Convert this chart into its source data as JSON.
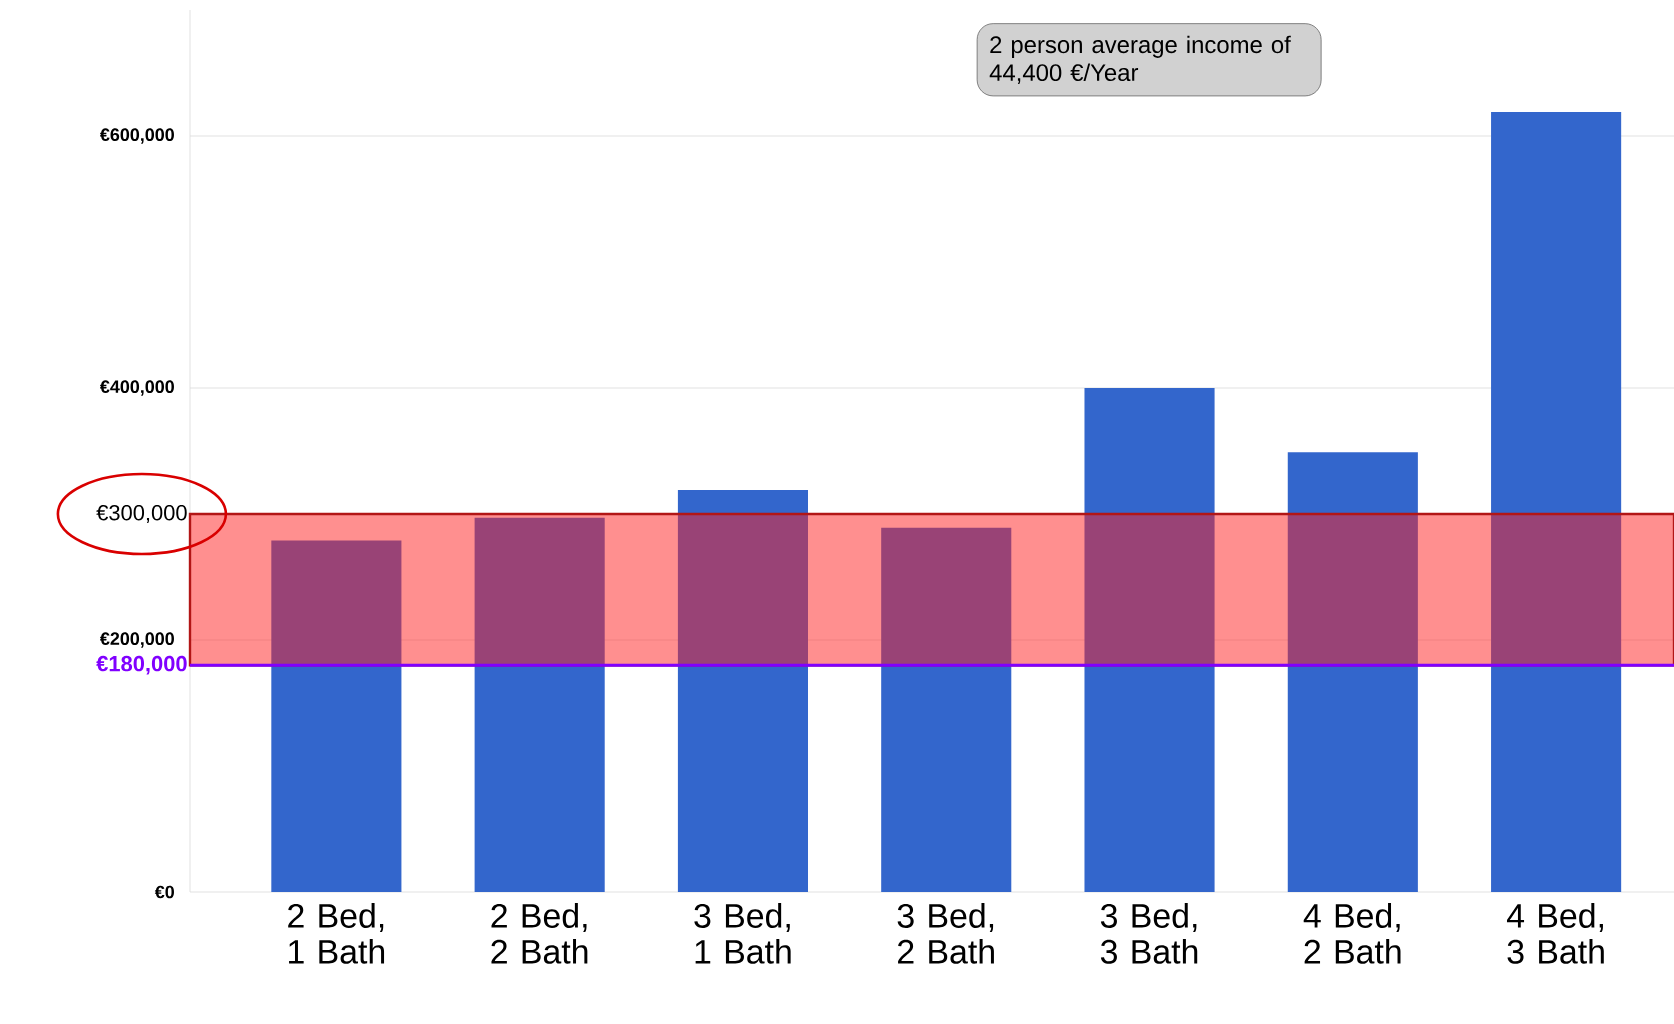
{
  "chart_data": {
    "type": "bar",
    "categories": [
      "2 Bed, 1 Bath",
      "2 Bed, 2 Bath",
      "3 Bed, 1 Bath",
      "3 Bed, 2 Bath",
      "3 Bed, 3 Bath",
      "4 Bed, 2 Bath",
      "4 Bed, 3 Bath"
    ],
    "values": [
      279000,
      297000,
      319000,
      289000,
      400000,
      349000,
      619000
    ],
    "color": "#3366cc",
    "yticks": [
      {
        "value": 0,
        "label": "€0"
      },
      {
        "value": 200000,
        "label": "€200,000"
      },
      {
        "value": 400000,
        "label": "€400,000"
      },
      {
        "value": 600000,
        "label": "€600,000"
      }
    ],
    "ylim": [
      0,
      700000
    ],
    "grid": "y",
    "ref_lines": [
      {
        "axis": "y",
        "value": 180000,
        "label": "€180,000",
        "color": "#8000ff"
      }
    ],
    "bands": [
      {
        "axis": "y",
        "from": 180000,
        "to": 300000,
        "label": "€300,000",
        "color": "#ff2020"
      }
    ],
    "annotations": [
      "2 person average income of 44,400 €/Year"
    ]
  }
}
